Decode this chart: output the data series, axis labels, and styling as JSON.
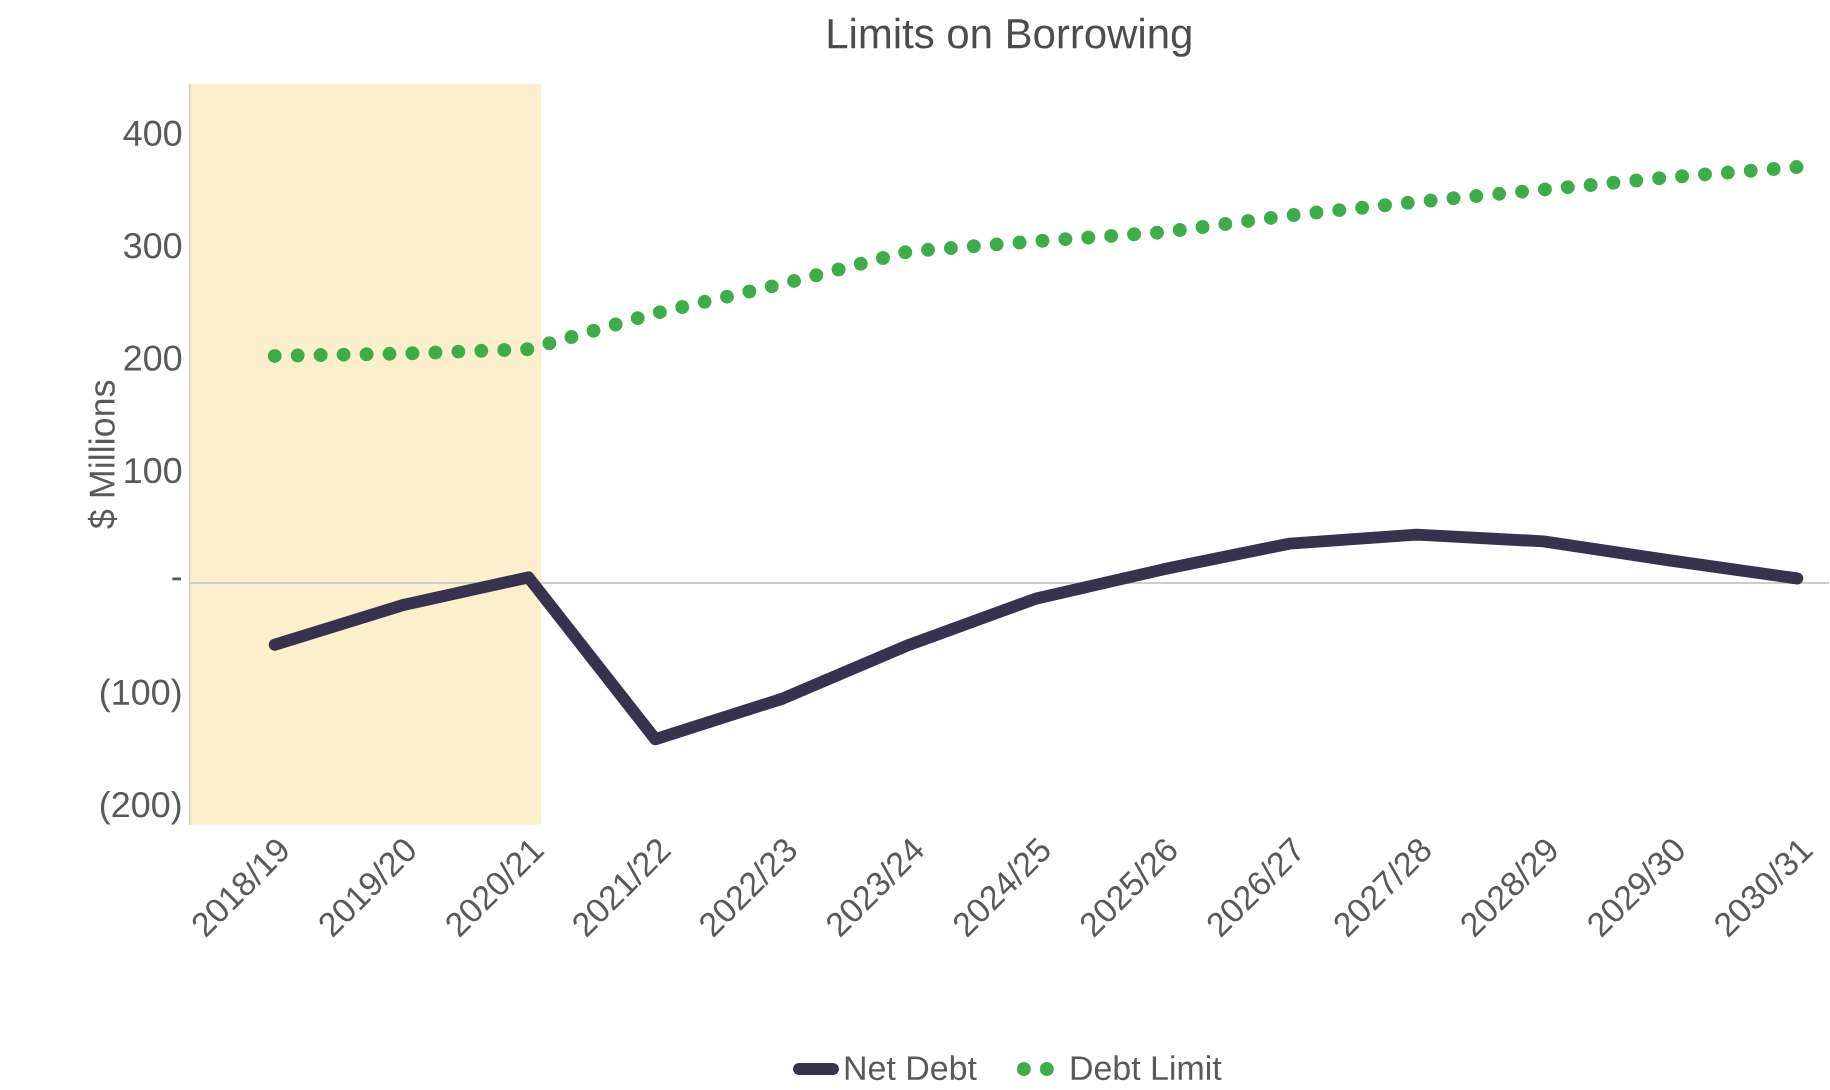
{
  "chart_data": {
    "type": "line",
    "title": "Limits on Borrowing",
    "ylabel": "$ Millions",
    "categories": [
      "2018/19",
      "2019/20",
      "2020/21",
      "2021/22",
      "2022/23",
      "2023/24",
      "2024/25",
      "2025/26",
      "2026/27",
      "2027/28",
      "2028/29",
      "2029/30",
      "2030/31"
    ],
    "series": [
      {
        "name": "Net Debt",
        "color": "#37334f",
        "line_style": "solid",
        "values": [
          -55,
          -20,
          5,
          -139,
          -103,
          -55,
          -14,
          12,
          35,
          43,
          37,
          20,
          4
        ]
      },
      {
        "name": "Debt Limit",
        "color": "#3cad48",
        "line_style": "dotted",
        "values": [
          202,
          204,
          208,
          240,
          266,
          295,
          304,
          312,
          327,
          339,
          350,
          361,
          370
        ]
      }
    ],
    "ylim": [
      -215,
      444
    ],
    "yticks": [
      {
        "value": -200,
        "label": "(200)"
      },
      {
        "value": -100,
        "label": "(100)"
      },
      {
        "value": 0,
        "label": "-"
      },
      100,
      200,
      300,
      400
    ],
    "bands": [
      {
        "axis": "x",
        "from": "2018/19",
        "to": "2020/21",
        "color": "#fcf0cc"
      }
    ],
    "legend": "bottom"
  }
}
